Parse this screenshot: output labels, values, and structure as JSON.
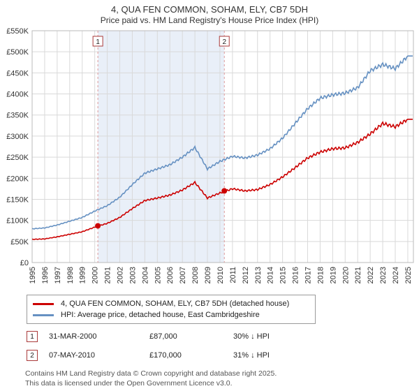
{
  "chart_data": {
    "type": "line",
    "title": "4, QUA FEN COMMON, SOHAM, ELY, CB7 5DH",
    "subtitle": "Price paid vs. HM Land Registry's House Price Index (HPI)",
    "xlim": [
      1995,
      2025.45
    ],
    "ylim": [
      0,
      550000
    ],
    "ytick_step": 50000,
    "grid": true,
    "legend_position": "bottom",
    "x": [
      1995,
      1996,
      1997,
      1998,
      1999,
      2000,
      2001,
      2002,
      2003,
      2004,
      2005,
      2006,
      2007,
      2008,
      2009,
      2010,
      2011,
      2012,
      2013,
      2014,
      2015,
      2016,
      2017,
      2018,
      2019,
      2020,
      2021,
      2022,
      2023,
      2024,
      2025
    ],
    "series": [
      {
        "name": "4, QUA FEN COMMON, SOHAM, ELY, CB7 5DH (detached house)",
        "color": "#cc0000",
        "values": [
          55000,
          56000,
          61000,
          67000,
          73000,
          84000,
          93000,
          107000,
          128000,
          147000,
          153000,
          160000,
          172000,
          190000,
          153000,
          165000,
          175000,
          170000,
          173000,
          185000,
          203000,
          225000,
          248000,
          262000,
          270000,
          272000,
          285000,
          305000,
          330000,
          322000,
          340000
        ]
      },
      {
        "name": "HPI: Average price, detached house, East Cambridgeshire",
        "color": "#6691c2",
        "values": [
          80000,
          82000,
          89000,
          98000,
          107000,
          122000,
          135000,
          155000,
          185000,
          212000,
          222000,
          232000,
          250000,
          273000,
          222000,
          240000,
          252000,
          248000,
          255000,
          270000,
          295000,
          330000,
          365000,
          390000,
          398000,
          402000,
          415000,
          455000,
          470000,
          460000,
          490000
        ]
      }
    ],
    "sales": [
      {
        "label": "1",
        "x": 2000.25,
        "price": 87000
      },
      {
        "label": "2",
        "x": 2010.35,
        "price": 170000
      }
    ],
    "shaded_region": [
      2000.25,
      2010.35
    ],
    "colors": {
      "grid": "#d9d9d9",
      "frame": "#bbbbbb",
      "shade": "#e9eff8",
      "dashed": "#dd9999",
      "marker_box_border": "#aa3a3a",
      "axis_text": "#333333"
    }
  },
  "legend": {
    "items": [
      {
        "label": "4, QUA FEN COMMON, SOHAM, ELY, CB7 5DH (detached house)",
        "color": "#cc0000"
      },
      {
        "label": "HPI: Average price, detached house, East Cambridgeshire",
        "color": "#6691c2"
      }
    ]
  },
  "transactions": [
    {
      "num": "1",
      "date": "31-MAR-2000",
      "price": "£87,000",
      "vs_hpi": "30% ↓ HPI"
    },
    {
      "num": "2",
      "date": "07-MAY-2010",
      "price": "£170,000",
      "vs_hpi": "31% ↓ HPI"
    }
  ],
  "footer": {
    "line1": "Contains HM Land Registry data © Crown copyright and database right 2025.",
    "line2": "This data is licensed under the Open Government Licence v3.0."
  }
}
